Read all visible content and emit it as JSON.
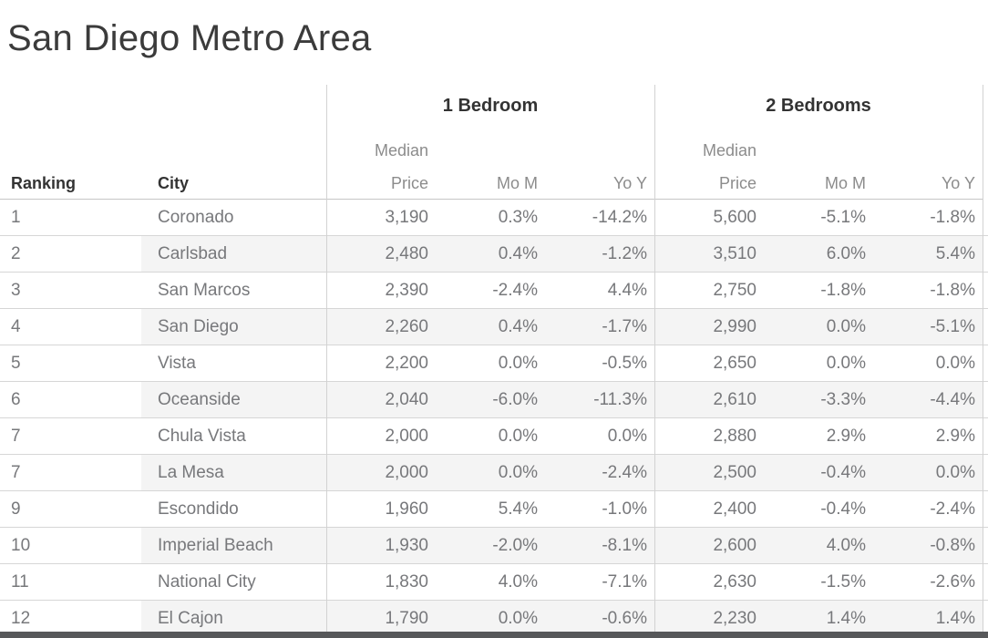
{
  "title": "San Diego Metro Area",
  "header": {
    "ranking": "Ranking",
    "city": "City",
    "groups": [
      {
        "label": "1 Bedroom",
        "median_line1": "Median",
        "median_line2": "Price",
        "mom": "Mo M",
        "yoy": "Yo Y"
      },
      {
        "label": "2 Bedrooms",
        "median_line1": "Median",
        "median_line2": "Price",
        "mom": "Mo M",
        "yoy": "Yo Y"
      }
    ]
  },
  "chart_data": {
    "type": "table",
    "title": "San Diego Metro Area",
    "column_groups": [
      "1 Bedroom",
      "2 Bedrooms"
    ],
    "columns": [
      "Ranking",
      "City",
      "Median Price",
      "Mo M",
      "Yo Y",
      "Median Price",
      "Mo M",
      "Yo Y"
    ],
    "rows": [
      {
        "ranking": "1",
        "city": "Coronado",
        "one_bedroom": {
          "median_price": "3,190",
          "mom": "0.3%",
          "yoy": "-14.2%"
        },
        "two_bedrooms": {
          "median_price": "5,600",
          "mom": "-5.1%",
          "yoy": "-1.8%"
        }
      },
      {
        "ranking": "2",
        "city": "Carlsbad",
        "one_bedroom": {
          "median_price": "2,480",
          "mom": "0.4%",
          "yoy": "-1.2%"
        },
        "two_bedrooms": {
          "median_price": "3,510",
          "mom": "6.0%",
          "yoy": "5.4%"
        }
      },
      {
        "ranking": "3",
        "city": "San Marcos",
        "one_bedroom": {
          "median_price": "2,390",
          "mom": "-2.4%",
          "yoy": "4.4%"
        },
        "two_bedrooms": {
          "median_price": "2,750",
          "mom": "-1.8%",
          "yoy": "-1.8%"
        }
      },
      {
        "ranking": "4",
        "city": "San Diego",
        "one_bedroom": {
          "median_price": "2,260",
          "mom": "0.4%",
          "yoy": "-1.7%"
        },
        "two_bedrooms": {
          "median_price": "2,990",
          "mom": "0.0%",
          "yoy": "-5.1%"
        }
      },
      {
        "ranking": "5",
        "city": "Vista",
        "one_bedroom": {
          "median_price": "2,200",
          "mom": "0.0%",
          "yoy": "-0.5%"
        },
        "two_bedrooms": {
          "median_price": "2,650",
          "mom": "0.0%",
          "yoy": "0.0%"
        }
      },
      {
        "ranking": "6",
        "city": "Oceanside",
        "one_bedroom": {
          "median_price": "2,040",
          "mom": "-6.0%",
          "yoy": "-11.3%"
        },
        "two_bedrooms": {
          "median_price": "2,610",
          "mom": "-3.3%",
          "yoy": "-4.4%"
        }
      },
      {
        "ranking": "7",
        "city": "Chula Vista",
        "one_bedroom": {
          "median_price": "2,000",
          "mom": "0.0%",
          "yoy": "0.0%"
        },
        "two_bedrooms": {
          "median_price": "2,880",
          "mom": "2.9%",
          "yoy": "2.9%"
        }
      },
      {
        "ranking": "7",
        "city": "La Mesa",
        "one_bedroom": {
          "median_price": "2,000",
          "mom": "0.0%",
          "yoy": "-2.4%"
        },
        "two_bedrooms": {
          "median_price": "2,500",
          "mom": "-0.4%",
          "yoy": "0.0%"
        }
      },
      {
        "ranking": "9",
        "city": "Escondido",
        "one_bedroom": {
          "median_price": "1,960",
          "mom": "5.4%",
          "yoy": "-1.0%"
        },
        "two_bedrooms": {
          "median_price": "2,400",
          "mom": "-0.4%",
          "yoy": "-2.4%"
        }
      },
      {
        "ranking": "10",
        "city": "Imperial Beach",
        "one_bedroom": {
          "median_price": "1,930",
          "mom": "-2.0%",
          "yoy": "-8.1%"
        },
        "two_bedrooms": {
          "median_price": "2,600",
          "mom": "4.0%",
          "yoy": "-0.8%"
        }
      },
      {
        "ranking": "11",
        "city": "National City",
        "one_bedroom": {
          "median_price": "1,830",
          "mom": "4.0%",
          "yoy": "-7.1%"
        },
        "two_bedrooms": {
          "median_price": "2,630",
          "mom": "-1.5%",
          "yoy": "-2.6%"
        }
      },
      {
        "ranking": "12",
        "city": "El Cajon",
        "one_bedroom": {
          "median_price": "1,790",
          "mom": "0.0%",
          "yoy": "-0.6%"
        },
        "two_bedrooms": {
          "median_price": "2,230",
          "mom": "1.4%",
          "yoy": "1.4%"
        }
      }
    ]
  },
  "colors": {
    "title_text": "#3b3b3b",
    "header_text": "#333333",
    "measure_header_text": "#8c8c8c",
    "data_text": "#77787b",
    "stripe": "#f4f4f4",
    "grid_line": "#d2d2d2",
    "bottom_bar": "#57585a"
  }
}
